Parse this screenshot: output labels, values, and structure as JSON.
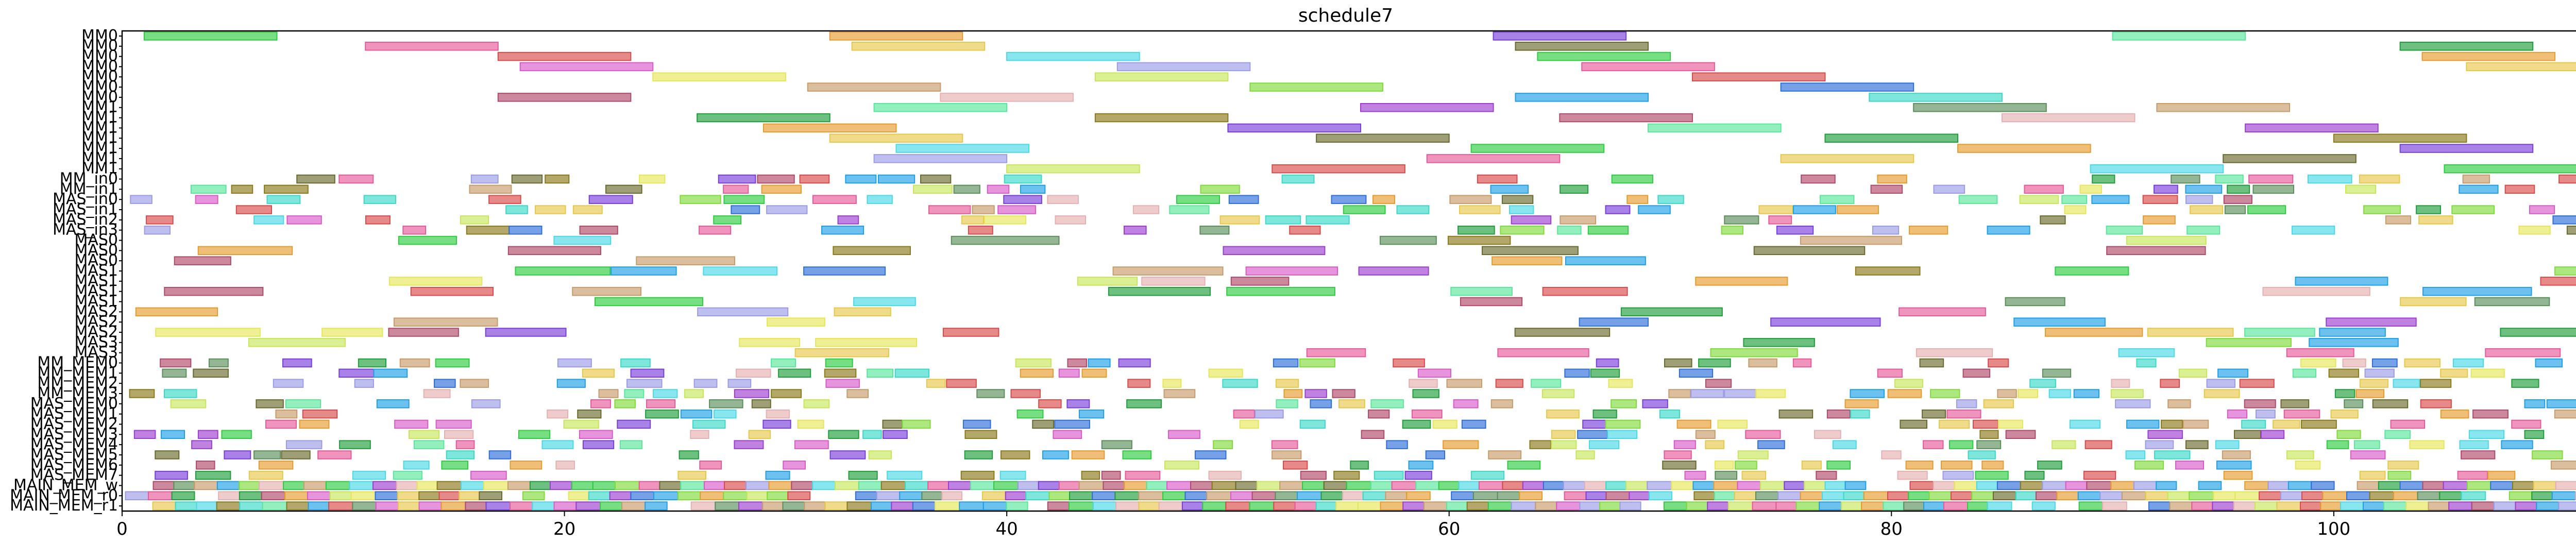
{
  "chart_data": {
    "type": "gantt",
    "title": "schedule7",
    "xlabel": "",
    "ylabel": "",
    "xlim": [
      0,
      112
    ],
    "x_ticks": [
      0,
      20,
      40,
      60,
      80,
      100
    ],
    "grid": false,
    "rows": [
      "MM0",
      "MM0",
      "MM0",
      "MM0",
      "MM0",
      "MM0",
      "MM0",
      "MM1",
      "MM1",
      "MM1",
      "MM1",
      "MM1",
      "MM1",
      "MM1",
      "MM_in0",
      "MM_in1",
      "MAS_in0",
      "MAS_in1",
      "MAS_in2",
      "MAS_in3",
      "MAS0",
      "MAS0",
      "MAS0",
      "MAS1",
      "MAS1",
      "MAS1",
      "MAS1",
      "MAS2",
      "MAS2",
      "MAS2",
      "MAS3",
      "MAS3",
      "MM_MEM0",
      "MM_MEM1",
      "MM_MEM2",
      "MM_MEM3",
      "MAS_MEM0",
      "MAS_MEM1",
      "MAS_MEM2",
      "MAS_MEM3",
      "MAS_MEM4",
      "MAS_MEM5",
      "MAS_MEM6",
      "MAS_MEM7",
      "MAIN_MEM_w",
      "MAIN_MEM_r0",
      "MAIN_MEM_r1"
    ],
    "bar_duration_note": "",
    "palette": [
      "#2ecc40",
      "#7fdb3a",
      "#1f9e3a",
      "#c8e65a",
      "#9c3fcf",
      "#e65a9a",
      "#1fa0e6",
      "#e69b2e",
      "#2e6fd9",
      "#8a7a1a",
      "#d94a4a",
      "#5a8f5a",
      "#e6c84a",
      "#3ad9c8",
      "#7a3fd9",
      "#d95ac8",
      "#b04a6a",
      "#4ad9e6",
      "#c89b6a",
      "#6a6a2e",
      "#e6e65a",
      "#5ae69b",
      "#9b9be6",
      "#e6b0b0"
    ],
    "long_bars": [
      {
        "row": 0,
        "start": 1,
        "end": 7
      },
      {
        "row": 0,
        "start": 32,
        "end": 38
      },
      {
        "row": 0,
        "start": 62,
        "end": 68
      },
      {
        "row": 0,
        "start": 90,
        "end": 96
      },
      {
        "row": 1,
        "start": 11,
        "end": 17
      },
      {
        "row": 1,
        "start": 33,
        "end": 39
      },
      {
        "row": 1,
        "start": 63,
        "end": 69
      },
      {
        "row": 1,
        "start": 103,
        "end": 109
      },
      {
        "row": 2,
        "start": 17,
        "end": 23
      },
      {
        "row": 2,
        "start": 40,
        "end": 46
      },
      {
        "row": 2,
        "start": 64,
        "end": 70
      },
      {
        "row": 2,
        "start": 104,
        "end": 110
      },
      {
        "row": 3,
        "start": 18,
        "end": 24
      },
      {
        "row": 3,
        "start": 45,
        "end": 51
      },
      {
        "row": 3,
        "start": 66,
        "end": 72
      },
      {
        "row": 3,
        "start": 106,
        "end": 112
      },
      {
        "row": 4,
        "start": 24,
        "end": 30
      },
      {
        "row": 4,
        "start": 44,
        "end": 50
      },
      {
        "row": 4,
        "start": 71,
        "end": 77
      },
      {
        "row": 5,
        "start": 31,
        "end": 37
      },
      {
        "row": 5,
        "start": 51,
        "end": 57
      },
      {
        "row": 5,
        "start": 75,
        "end": 81
      },
      {
        "row": 6,
        "start": 17,
        "end": 23
      },
      {
        "row": 6,
        "start": 37,
        "end": 43
      },
      {
        "row": 6,
        "start": 63,
        "end": 69
      },
      {
        "row": 6,
        "start": 79,
        "end": 85
      },
      {
        "row": 7,
        "start": 34,
        "end": 40
      },
      {
        "row": 7,
        "start": 56,
        "end": 62
      },
      {
        "row": 7,
        "start": 81,
        "end": 87
      },
      {
        "row": 7,
        "start": 92,
        "end": 98
      },
      {
        "row": 8,
        "start": 26,
        "end": 32
      },
      {
        "row": 8,
        "start": 44,
        "end": 50
      },
      {
        "row": 8,
        "start": 65,
        "end": 71
      },
      {
        "row": 8,
        "start": 85,
        "end": 91
      },
      {
        "row": 9,
        "start": 29,
        "end": 35
      },
      {
        "row": 9,
        "start": 50,
        "end": 56
      },
      {
        "row": 9,
        "start": 69,
        "end": 75
      },
      {
        "row": 9,
        "start": 96,
        "end": 102
      },
      {
        "row": 10,
        "start": 32,
        "end": 38
      },
      {
        "row": 10,
        "start": 54,
        "end": 60
      },
      {
        "row": 10,
        "start": 77,
        "end": 83
      },
      {
        "row": 10,
        "start": 100,
        "end": 106
      },
      {
        "row": 11,
        "start": 35,
        "end": 41
      },
      {
        "row": 11,
        "start": 61,
        "end": 67
      },
      {
        "row": 11,
        "start": 83,
        "end": 89
      },
      {
        "row": 11,
        "start": 103,
        "end": 109
      },
      {
        "row": 12,
        "start": 34,
        "end": 40
      },
      {
        "row": 12,
        "start": 59,
        "end": 65
      },
      {
        "row": 12,
        "start": 75,
        "end": 81
      },
      {
        "row": 12,
        "start": 95,
        "end": 101
      },
      {
        "row": 13,
        "start": 40,
        "end": 46
      },
      {
        "row": 13,
        "start": 52,
        "end": 58
      },
      {
        "row": 13,
        "start": 89,
        "end": 95
      },
      {
        "row": 13,
        "start": 105,
        "end": 111
      }
    ],
    "short_bar_rows": {
      "from": 14,
      "to": 46
    }
  }
}
